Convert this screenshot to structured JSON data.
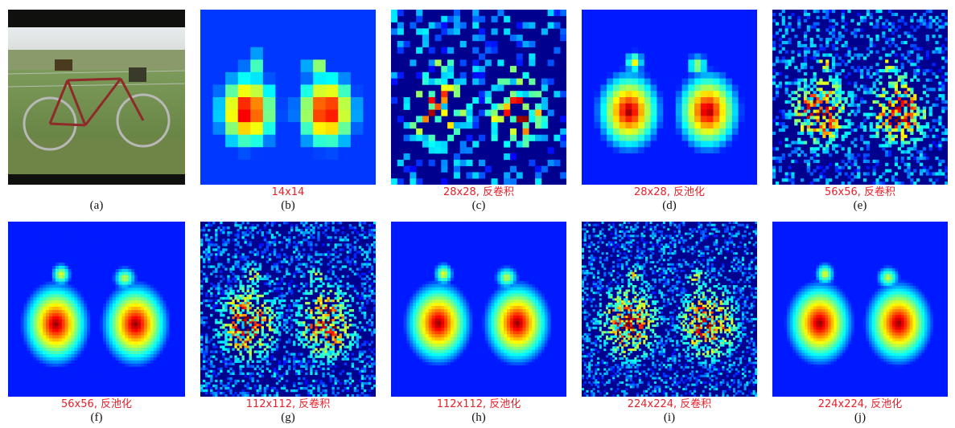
{
  "panels": [
    {
      "id": "a",
      "letter": "(a)",
      "caption": ""
    },
    {
      "id": "b",
      "letter": "(b)",
      "caption": "14x14"
    },
    {
      "id": "c",
      "letter": "(c)",
      "caption": "28x28, 反卷积"
    },
    {
      "id": "d",
      "letter": "(d)",
      "caption": "28x28, 反池化"
    },
    {
      "id": "e",
      "letter": "(e)",
      "caption": "56x56, 反卷积"
    },
    {
      "id": "f",
      "letter": "(f)",
      "caption": "56x56, 反池化"
    },
    {
      "id": "g",
      "letter": "(g)",
      "caption": "112x112, 反卷积"
    },
    {
      "id": "h",
      "letter": "(h)",
      "caption": "112x112, 反池化"
    },
    {
      "id": "i",
      "letter": "(i)",
      "caption": "224x224, 反卷积"
    },
    {
      "id": "j",
      "letter": "(j)",
      "caption": "224x224, 反池化"
    }
  ],
  "colors": {
    "caption": "#e8202a",
    "heat_low": "#00008f",
    "heat_high": "#800000"
  }
}
